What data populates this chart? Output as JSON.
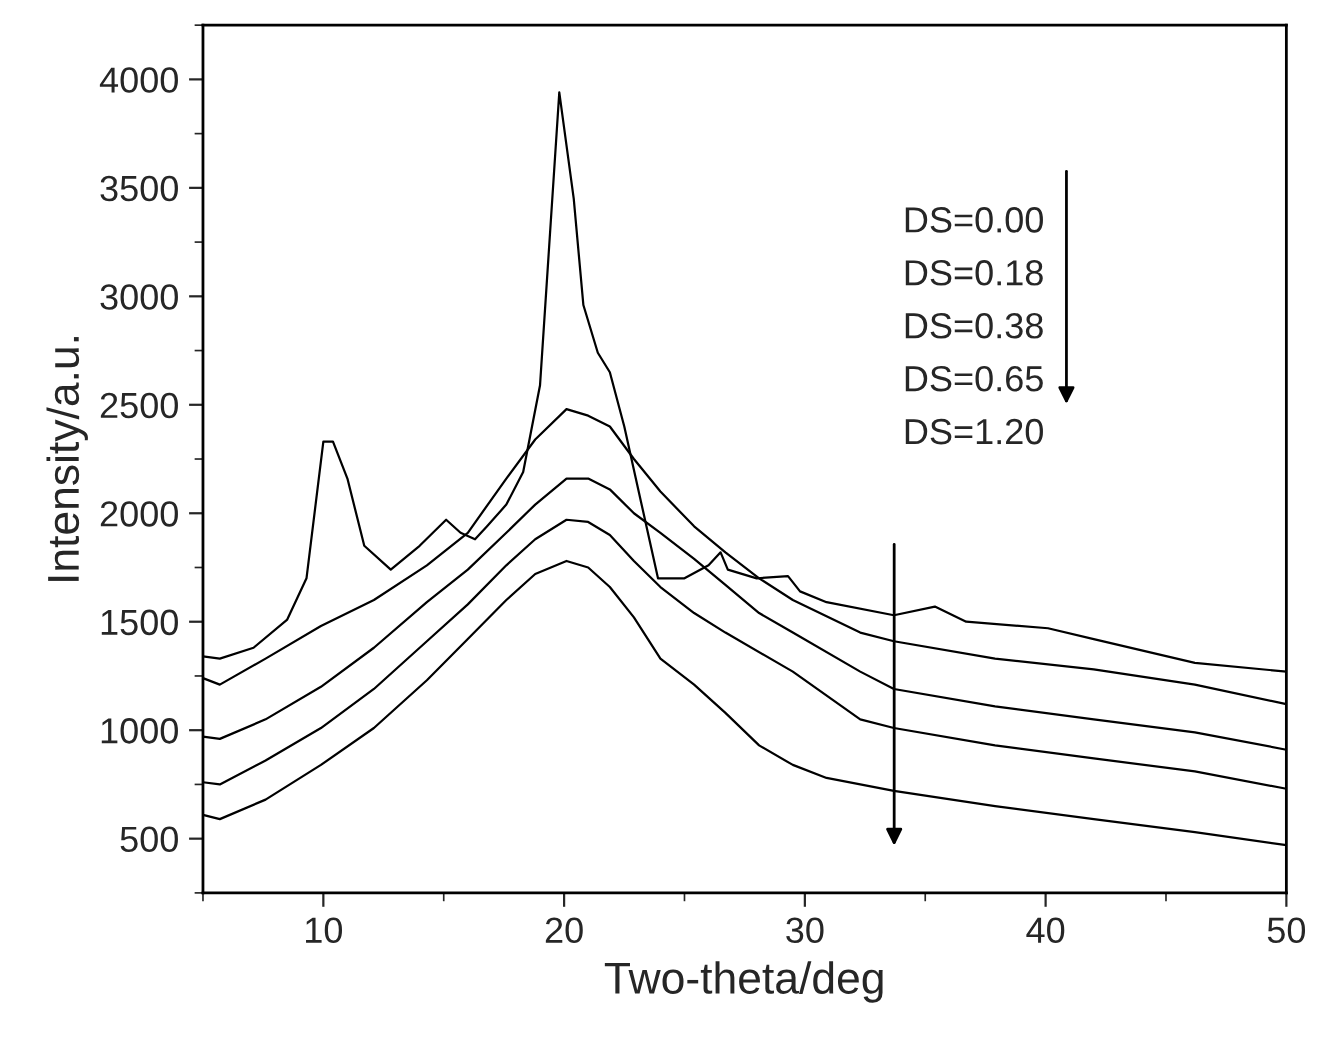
{
  "chart_data": {
    "type": "line",
    "xlabel": "Two-theta/deg",
    "ylabel": "Intensity/a.u.",
    "xlim": [
      5,
      50
    ],
    "xticks": [
      10,
      20,
      30,
      40,
      50
    ],
    "ylim": [
      250,
      4250
    ],
    "yticks": [
      500,
      1000,
      1500,
      2000,
      2500,
      3000,
      3500,
      4000
    ],
    "grid": false,
    "legend": false,
    "marker": "none",
    "line_style": "solid",
    "annotations": [
      "DS=0.00",
      "DS=0.18",
      "DS=0.38",
      "DS=0.65",
      "DS=1.20"
    ],
    "series": [
      {
        "color": "#000000",
        "x": [
          5,
          5.7,
          7.1,
          8.5,
          9.3,
          10,
          10.4,
          11,
          11.7,
          12.8,
          14,
          15.1,
          15.7,
          16.3,
          16.8,
          17.6,
          18.3,
          19,
          19.8,
          20.4,
          20.8,
          21.4,
          21.9,
          22.5,
          23.2,
          23.9,
          25,
          26,
          26.5,
          26.8,
          28,
          29.3,
          29.8,
          30.9,
          33.7,
          35.4,
          36.7,
          40.1,
          42,
          46.2,
          50
        ],
        "values": [
          1340,
          1330,
          1380,
          1510,
          1700,
          2330,
          2330,
          2160,
          1850,
          1740,
          1850,
          1970,
          1910,
          1880,
          1940,
          2040,
          2190,
          2590,
          3940,
          3450,
          2960,
          2740,
          2650,
          2400,
          2050,
          1700,
          1700,
          1760,
          1820,
          1740,
          1700,
          1710,
          1640,
          1590,
          1530,
          1570,
          1500,
          1470,
          1420,
          1310,
          1270
        ]
      },
      {
        "color": "#000000",
        "x": [
          5,
          5.7,
          7.6,
          9.9,
          12.1,
          14.3,
          16,
          17.6,
          18.8,
          20.1,
          21,
          21.9,
          22.9,
          24,
          25.4,
          26.7,
          28.1,
          29.5,
          32.3,
          33.7,
          37.9,
          42,
          46.2,
          50
        ],
        "values": [
          1240,
          1210,
          1330,
          1480,
          1600,
          1760,
          1910,
          2160,
          2340,
          2480,
          2450,
          2400,
          2250,
          2100,
          1940,
          1820,
          1700,
          1600,
          1450,
          1410,
          1330,
          1280,
          1210,
          1120
        ]
      },
      {
        "color": "#000000",
        "x": [
          5,
          5.7,
          7.6,
          9.9,
          12.1,
          14.3,
          16,
          17.6,
          18.8,
          20.1,
          21,
          21.9,
          22.9,
          24,
          25.4,
          26.7,
          28.1,
          29.5,
          32.3,
          33.7,
          37.9,
          42,
          46.2,
          50
        ],
        "values": [
          970,
          960,
          1050,
          1200,
          1380,
          1590,
          1740,
          1910,
          2040,
          2160,
          2160,
          2110,
          2000,
          1910,
          1790,
          1670,
          1540,
          1450,
          1270,
          1190,
          1110,
          1050,
          990,
          910
        ]
      },
      {
        "color": "#000000",
        "x": [
          5,
          5.7,
          7.6,
          9.9,
          12.1,
          14.3,
          16,
          17.6,
          18.8,
          20.1,
          21,
          21.9,
          22.9,
          24,
          25.4,
          26.7,
          29.5,
          32.3,
          33.7,
          37.9,
          42,
          46.2,
          50
        ],
        "values": [
          760,
          750,
          860,
          1010,
          1190,
          1410,
          1580,
          1760,
          1880,
          1970,
          1960,
          1900,
          1780,
          1660,
          1540,
          1450,
          1270,
          1050,
          1010,
          930,
          870,
          810,
          730
        ]
      },
      {
        "color": "#000000",
        "x": [
          5,
          5.7,
          7.6,
          9.9,
          12.1,
          14.3,
          16,
          17.6,
          18.8,
          20.1,
          21,
          21.9,
          22.9,
          24,
          25.4,
          26.7,
          28.1,
          29.5,
          30.9,
          33.7,
          37.9,
          42,
          46.2,
          50
        ],
        "values": [
          610,
          590,
          680,
          840,
          1010,
          1230,
          1420,
          1600,
          1720,
          1780,
          1750,
          1660,
          1520,
          1330,
          1210,
          1080,
          930,
          840,
          780,
          720,
          650,
          590,
          530,
          470
        ]
      }
    ]
  }
}
